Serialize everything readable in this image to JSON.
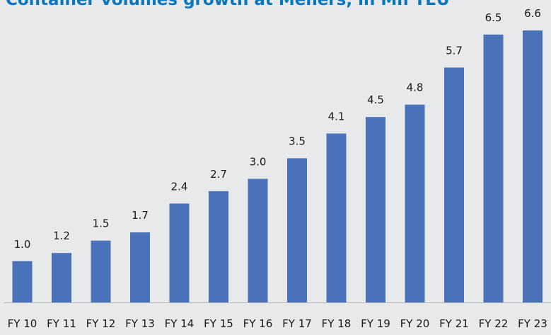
{
  "chart_data": {
    "type": "bar",
    "title": "Container volumes growth at Mehers, in Mn TEU",
    "xlabel": "",
    "ylabel": "",
    "categories": [
      "FY 10",
      "FY 11",
      "FY 12",
      "FY 13",
      "FY 14",
      "FY 15",
      "FY 16",
      "FY 17",
      "FY 18",
      "FY 19",
      "FY 20",
      "FY 21",
      "FY 22",
      "FY 23"
    ],
    "values": [
      1.0,
      1.2,
      1.5,
      1.7,
      2.4,
      2.7,
      3.0,
      3.5,
      4.1,
      4.5,
      4.8,
      5.7,
      6.5,
      6.6
    ],
    "value_labels": [
      "1.0",
      "1.2",
      "1.5",
      "1.7",
      "2.4",
      "2.7",
      "3.0",
      "3.5",
      "4.1",
      "4.5",
      "4.8",
      "5.7",
      "6.5",
      "6.6"
    ],
    "ylim": [
      0,
      6.6
    ],
    "grid": false,
    "bar_color": "#4a72b8",
    "title_color": "#0a76bd"
  }
}
